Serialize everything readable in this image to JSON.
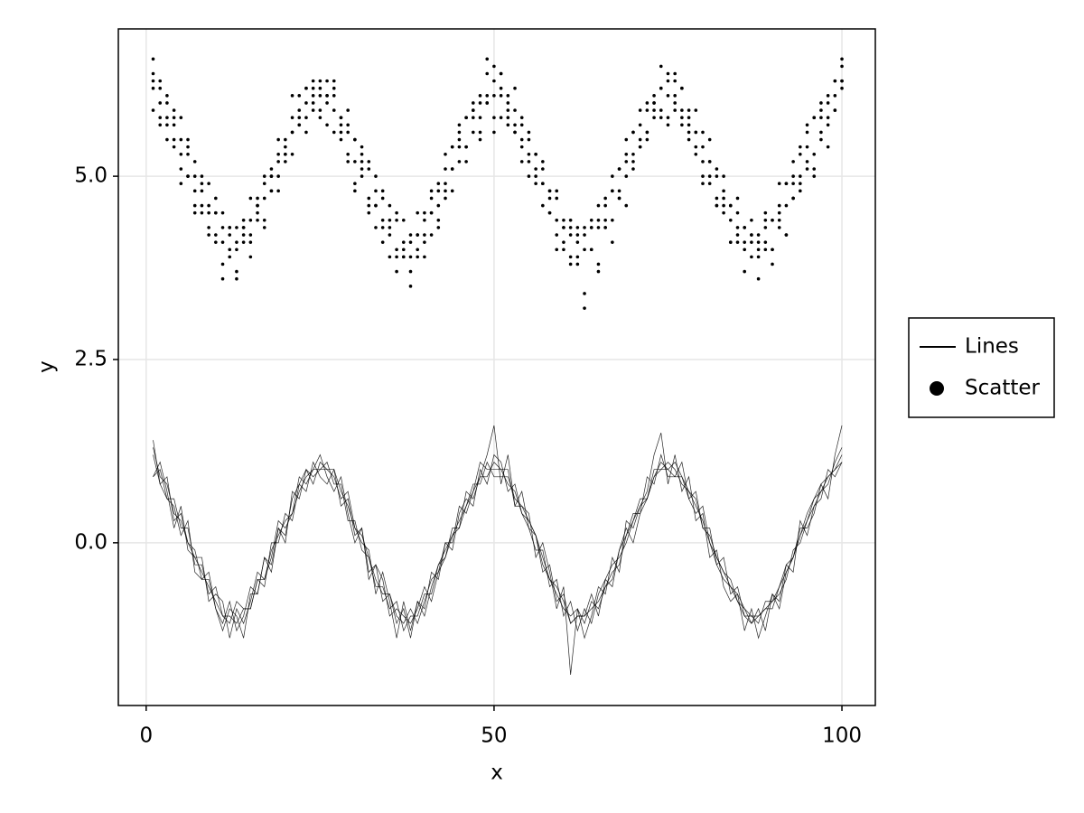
{
  "chart_data": {
    "type": "line",
    "x_label": "x",
    "y_label": "y",
    "xlim": [
      -4.0,
      104.8
    ],
    "ylim": [
      -2.22,
      7.01
    ],
    "xticks": [
      0,
      50,
      100
    ],
    "yticks": [
      {
        "value": 0,
        "label": "0.0"
      },
      2.5,
      {
        "value": 5,
        "label": "5.0"
      }
    ],
    "grid": true,
    "legend": "outside-right",
    "x": [
      1,
      2,
      3,
      4,
      5,
      6,
      7,
      8,
      9,
      10,
      11,
      12,
      13,
      14,
      15,
      16,
      17,
      18,
      19,
      20,
      21,
      22,
      23,
      24,
      25,
      26,
      27,
      28,
      29,
      30,
      31,
      32,
      33,
      34,
      35,
      36,
      37,
      38,
      39,
      40,
      41,
      42,
      43,
      44,
      45,
      46,
      47,
      48,
      49,
      50,
      51,
      52,
      53,
      54,
      55,
      56,
      57,
      58,
      59,
      60,
      61,
      62,
      63,
      64,
      65,
      66,
      67,
      68,
      69,
      70,
      71,
      72,
      73,
      74,
      75,
      76,
      77,
      78,
      79,
      80,
      81,
      82,
      83,
      84,
      85,
      86,
      87,
      88,
      89,
      90,
      91,
      92,
      93,
      94,
      95,
      96,
      97,
      98,
      99,
      100
    ],
    "series": [
      {
        "name": "Lines",
        "kind": "line",
        "color": "#000000",
        "runs": [
          [
            1.2,
            0.8,
            0.9,
            0.3,
            0.4,
            0.0,
            -0.1,
            -0.5,
            -0.4,
            -0.9,
            -1.1,
            -0.8,
            -1.2,
            -1.0,
            -0.6,
            -0.7,
            -0.2,
            -0.3,
            0.2,
            0.1,
            0.6,
            0.8,
            0.7,
            1.1,
            0.9,
            0.8,
            1.0,
            0.5,
            0.6,
            0.1,
            0.2,
            -0.4,
            -0.3,
            -0.8,
            -0.7,
            -1.1,
            -0.9,
            -1.3,
            -0.8,
            -0.9,
            -0.4,
            -0.5,
            0.0,
            -0.1,
            0.4,
            0.6,
            0.5,
            1.0,
            0.8,
            1.2,
            1.1,
            0.7,
            0.8,
            0.4,
            0.2,
            -0.1,
            -0.1,
            -0.6,
            -0.5,
            -1.0,
            -0.8,
            -1.2,
            -0.9,
            -1.1,
            -0.7,
            -0.5,
            -0.6,
            -0.1,
            0.2,
            0.0,
            0.4,
            0.9,
            0.8,
            1.2,
            0.9,
            0.9,
            1.1,
            0.6,
            0.4,
            0.5,
            0.0,
            -0.3,
            -0.2,
            -0.7,
            -0.6,
            -1.0,
            -1.1,
            -0.9,
            -1.2,
            -0.7,
            -0.8,
            -0.3,
            -0.4,
            0.3,
            0.1,
            0.5,
            0.6,
            1.0,
            0.9,
            1.1
          ],
          [
            0.9,
            1.0,
            0.6,
            0.6,
            0.2,
            0.2,
            -0.3,
            -0.3,
            -0.7,
            -0.6,
            -1.0,
            -1.1,
            -0.8,
            -0.9,
            -0.9,
            -0.5,
            -0.6,
            0.0,
            0.0,
            0.4,
            0.3,
            0.8,
            1.0,
            0.9,
            1.0,
            1.1,
            0.8,
            0.8,
            0.3,
            0.3,
            -0.1,
            -0.2,
            -0.6,
            -0.6,
            -0.9,
            -0.8,
            -1.2,
            -1.0,
            -1.0,
            -0.7,
            -0.7,
            -0.3,
            -0.2,
            0.2,
            0.2,
            0.5,
            0.8,
            0.8,
            1.1,
            0.9,
            0.9,
            0.9,
            0.6,
            0.5,
            0.3,
            0.1,
            -0.3,
            -0.5,
            -0.7,
            -0.9,
            -1.0,
            -0.9,
            -1.1,
            -0.8,
            -0.9,
            -0.6,
            -0.4,
            -0.3,
            0.1,
            0.4,
            0.4,
            0.6,
            1.0,
            1.0,
            1.1,
            1.0,
            0.8,
            0.7,
            0.6,
            0.2,
            0.1,
            -0.2,
            -0.4,
            -0.5,
            -0.8,
            -1.0,
            -1.0,
            -1.1,
            -0.8,
            -0.8,
            -0.7,
            -0.5,
            -0.1,
            0.0,
            0.3,
            0.6,
            0.7,
            0.8,
            1.1,
            1.3
          ],
          [
            0.9,
            1.1,
            0.7,
            0.2,
            0.5,
            -0.1,
            -0.2,
            -0.2,
            -0.8,
            -0.7,
            -0.8,
            -1.3,
            -0.9,
            -1.1,
            -0.8,
            -0.4,
            -0.5,
            -0.2,
            0.3,
            0.2,
            0.4,
            0.9,
            0.8,
            1.0,
            1.2,
            0.9,
            0.7,
            0.9,
            0.4,
            0.0,
            0.2,
            -0.5,
            -0.3,
            -0.5,
            -1.0,
            -0.9,
            -1.0,
            -1.1,
            -0.9,
            -0.6,
            -0.8,
            -0.4,
            0.0,
            0.0,
            0.5,
            0.4,
            0.7,
            1.1,
            1.0,
            1.0,
            1.0,
            1.0,
            0.5,
            0.7,
            0.2,
            0.1,
            -0.4,
            -0.3,
            -0.8,
            -0.7,
            -1.1,
            -1.0,
            -1.0,
            -0.7,
            -1.0,
            -0.5,
            -0.3,
            -0.2,
            0.0,
            0.3,
            0.6,
            0.6,
            0.9,
            1.1,
            1.0,
            1.1,
            0.9,
            0.6,
            0.7,
            0.2,
            0.2,
            -0.3,
            -0.5,
            -0.6,
            -0.7,
            -0.9,
            -1.1,
            -1.0,
            -0.9,
            -0.9,
            -0.6,
            -0.4,
            -0.2,
            0.2,
            0.2,
            0.4,
            0.8,
            0.9,
            1.0,
            1.1
          ],
          [
            1.4,
            0.8,
            0.6,
            0.5,
            0.1,
            0.3,
            -0.4,
            -0.5,
            -0.5,
            -0.9,
            -1.2,
            -0.9,
            -1.0,
            -1.3,
            -0.7,
            -0.7,
            -0.2,
            -0.4,
            0.2,
            0.0,
            0.7,
            0.6,
            1.0,
            0.8,
            1.1,
            1.0,
            0.9,
            0.6,
            0.7,
            0.2,
            0.0,
            -0.1,
            -0.7,
            -0.4,
            -0.8,
            -1.3,
            -0.8,
            -1.2,
            -0.8,
            -1.0,
            -0.6,
            -0.3,
            -0.1,
            0.1,
            0.2,
            0.7,
            0.6,
            0.9,
            1.2,
            1.6,
            0.8,
            1.2,
            0.5,
            0.5,
            0.4,
            -0.2,
            0.0,
            -0.4,
            -0.9,
            -0.6,
            -1.8,
            -0.9,
            -1.3,
            -1.0,
            -0.6,
            -0.7,
            -0.2,
            -0.4,
            0.3,
            0.2,
            0.5,
            0.7,
            1.2,
            1.5,
            0.8,
            1.2,
            0.7,
            0.9,
            0.3,
            0.4,
            -0.2,
            -0.1,
            -0.6,
            -0.8,
            -0.7,
            -1.2,
            -0.9,
            -1.3,
            -1.0,
            -0.7,
            -0.9,
            -0.4,
            -0.2,
            0.1,
            0.4,
            0.6,
            0.8,
            0.6,
            1.2,
            1.6
          ],
          [
            1.3,
            0.9,
            0.8,
            0.4,
            0.3,
            0.0,
            -0.2,
            -0.4,
            -0.6,
            -0.8,
            -1.0,
            -1.0,
            -1.1,
            -0.9,
            -0.9,
            -0.5,
            -0.5,
            -0.1,
            0.1,
            0.3,
            0.4,
            0.7,
            0.9,
            1.0,
            1.0,
            1.0,
            1.0,
            0.7,
            0.5,
            0.2,
            0.1,
            -0.2,
            -0.5,
            -0.7,
            -0.7,
            -1.0,
            -1.1,
            -0.9,
            -1.1,
            -0.8,
            -0.5,
            -0.4,
            -0.2,
            0.1,
            0.3,
            0.5,
            0.7,
            0.9,
            0.9,
            1.1,
            1.0,
            0.8,
            0.7,
            0.4,
            0.3,
            0.1,
            -0.2,
            -0.5,
            -0.6,
            -0.8,
            -1.1,
            -1.0,
            -1.0,
            -0.9,
            -0.8,
            -0.6,
            -0.5,
            -0.1,
            0.1,
            0.3,
            0.5,
            0.6,
            0.9,
            1.0,
            1.0,
            0.9,
            0.9,
            0.7,
            0.5,
            0.3,
            0.0,
            -0.2,
            -0.4,
            -0.6,
            -0.8,
            -0.9,
            -1.0,
            -1.0,
            -0.9,
            -0.8,
            -0.6,
            -0.3,
            -0.2,
            0.1,
            0.3,
            0.5,
            0.7,
            0.9,
            1.0,
            1.2
          ]
        ]
      },
      {
        "name": "Scatter",
        "kind": "scatter",
        "color": "#000000",
        "runs": [
          [
            6.4,
            5.8,
            6.0,
            5.5,
            5.8,
            5.0,
            5.2,
            4.6,
            4.9,
            4.2,
            4.5,
            3.9,
            4.3,
            4.1,
            4.7,
            4.4,
            5.0,
            4.8,
            5.5,
            5.3,
            6.1,
            5.7,
            6.2,
            5.9,
            6.3,
            6.0,
            6.2,
            5.6,
            5.9,
            5.2,
            5.4,
            4.7,
            5.0,
            4.3,
            4.6,
            4.0,
            4.4,
            3.9,
            4.5,
            4.2,
            4.8,
            4.6,
            5.3,
            5.1,
            5.7,
            5.4,
            6.0,
            5.8,
            6.4,
            6.1,
            6.4,
            5.8,
            6.2,
            5.5,
            5.6,
            5.0,
            5.2,
            4.5,
            4.8,
            4.1,
            4.4,
            3.8,
            4.3,
            4.0,
            4.6,
            4.3,
            5.0,
            4.7,
            5.5,
            5.2,
            5.9,
            5.6,
            6.0,
            6.2,
            6.4,
            6.0,
            5.9,
            5.7,
            5.9,
            5.2,
            5.5,
            4.7,
            5.0,
            4.4,
            4.7,
            4.1,
            4.4,
            4.0,
            4.5,
            4.0,
            4.9,
            4.6,
            5.2,
            5.0,
            5.7,
            5.3,
            6.0,
            5.8,
            6.3,
            6.6
          ],
          [
            6.3,
            6.2,
            5.7,
            5.9,
            5.3,
            5.4,
            4.8,
            4.9,
            4.5,
            4.5,
            4.1,
            4.3,
            4.1,
            4.4,
            4.2,
            4.7,
            4.7,
            5.1,
            5.2,
            5.4,
            5.6,
            5.8,
            6.0,
            6.2,
            6.1,
            6.3,
            5.9,
            5.8,
            5.6,
            5.5,
            5.1,
            5.1,
            4.6,
            4.7,
            4.2,
            4.4,
            4.0,
            4.1,
            4.2,
            4.4,
            4.5,
            4.9,
            4.9,
            5.4,
            5.4,
            5.8,
            5.8,
            6.1,
            6.0,
            6.5,
            6.1,
            6.0,
            5.7,
            5.8,
            5.3,
            5.3,
            4.9,
            4.8,
            4.4,
            4.3,
            4.2,
            4.1,
            4.0,
            4.4,
            4.3,
            4.6,
            4.8,
            5.1,
            5.2,
            5.6,
            5.5,
            5.9,
            6.0,
            6.2,
            6.1,
            6.3,
            6.2,
            5.8,
            5.6,
            5.4,
            5.2,
            5.0,
            4.7,
            4.6,
            4.3,
            4.3,
            4.1,
            4.2,
            4.3,
            4.4,
            4.5,
            4.9,
            4.9,
            5.4,
            5.4,
            5.8,
            5.8,
            6.0,
            6.1,
            6.3
          ],
          [
            5.9,
            6.0,
            5.5,
            5.7,
            4.9,
            5.3,
            4.6,
            4.8,
            4.3,
            4.5,
            3.8,
            4.2,
            3.6,
            4.3,
            4.1,
            4.6,
            4.4,
            5.0,
            5.0,
            5.2,
            5.6,
            5.9,
            5.8,
            6.0,
            5.8,
            5.7,
            6.1,
            5.5,
            5.3,
            4.9,
            5.0,
            4.6,
            4.6,
            4.1,
            4.3,
            3.9,
            3.9,
            3.7,
            4.0,
            4.1,
            4.5,
            4.4,
            4.7,
            5.1,
            5.5,
            5.2,
            5.9,
            5.6,
            6.1,
            5.6,
            5.8,
            5.9,
            5.6,
            5.4,
            5.0,
            5.1,
            4.6,
            4.7,
            4.2,
            4.3,
            3.9,
            4.2,
            3.2,
            4.0,
            3.8,
            4.4,
            4.4,
            4.7,
            5.0,
            5.1,
            5.4,
            5.6,
            5.9,
            5.8,
            5.7,
            5.9,
            5.8,
            5.5,
            5.4,
            5.0,
            4.9,
            4.6,
            4.6,
            4.1,
            4.2,
            4.0,
            4.2,
            3.9,
            4.0,
            4.0,
            4.4,
            4.2,
            4.7,
            4.9,
            5.2,
            5.1,
            5.6,
            5.7,
            5.9,
            6.2
          ],
          [
            6.2,
            5.7,
            5.8,
            5.4,
            5.1,
            5.0,
            4.5,
            4.5,
            4.2,
            4.1,
            3.6,
            4.0,
            3.7,
            4.2,
            3.9,
            4.5,
            4.3,
            4.8,
            4.8,
            5.3,
            5.3,
            5.7,
            5.6,
            6.1,
            5.9,
            6.1,
            5.6,
            5.7,
            5.2,
            4.8,
            5.2,
            4.5,
            4.3,
            4.4,
            3.9,
            3.7,
            3.9,
            3.5,
            3.9,
            3.9,
            4.2,
            4.3,
            4.8,
            4.8,
            5.2,
            5.4,
            5.6,
            5.5,
            6.0,
            5.8,
            6.2,
            5.7,
            5.6,
            5.2,
            5.2,
            4.9,
            4.9,
            4.5,
            4.0,
            4.0,
            3.8,
            3.9,
            3.4,
            4.3,
            3.7,
            4.3,
            4.1,
            4.8,
            4.6,
            5.3,
            5.4,
            5.5,
            5.8,
            5.9,
            5.8,
            6.1,
            5.7,
            5.6,
            5.3,
            4.9,
            5.0,
            4.6,
            4.5,
            4.1,
            4.1,
            3.7,
            3.9,
            3.6,
            4.1,
            3.8,
            4.3,
            4.2,
            4.7,
            4.8,
            5.1,
            5.0,
            5.5,
            5.4,
            5.9,
            6.3
          ],
          [
            6.6,
            6.3,
            6.1,
            5.8,
            5.5,
            5.5,
            5.0,
            5.0,
            4.6,
            4.7,
            4.3,
            4.3,
            4.0,
            4.3,
            4.4,
            4.6,
            4.9,
            5.0,
            5.3,
            5.5,
            5.8,
            6.1,
            6.2,
            6.3,
            6.2,
            6.1,
            6.3,
            5.8,
            5.7,
            5.5,
            5.3,
            5.2,
            4.8,
            4.8,
            4.4,
            4.5,
            4.1,
            4.2,
            4.2,
            4.5,
            4.7,
            4.8,
            5.1,
            5.4,
            5.6,
            5.8,
            5.9,
            6.0,
            6.6,
            6.3,
            6.4,
            6.1,
            5.9,
            5.7,
            5.5,
            5.3,
            5.1,
            4.8,
            4.7,
            4.4,
            4.3,
            4.3,
            4.2,
            4.3,
            4.4,
            4.7,
            4.8,
            5.1,
            5.3,
            5.6,
            5.7,
            6.0,
            6.1,
            6.5,
            6.3,
            6.4,
            6.2,
            5.9,
            5.6,
            5.6,
            5.2,
            5.1,
            4.8,
            4.6,
            4.5,
            4.3,
            4.2,
            4.1,
            4.4,
            4.4,
            4.6,
            4.9,
            5.0,
            5.3,
            5.6,
            5.8,
            5.9,
            6.1,
            6.3,
            6.5
          ]
        ]
      }
    ]
  }
}
